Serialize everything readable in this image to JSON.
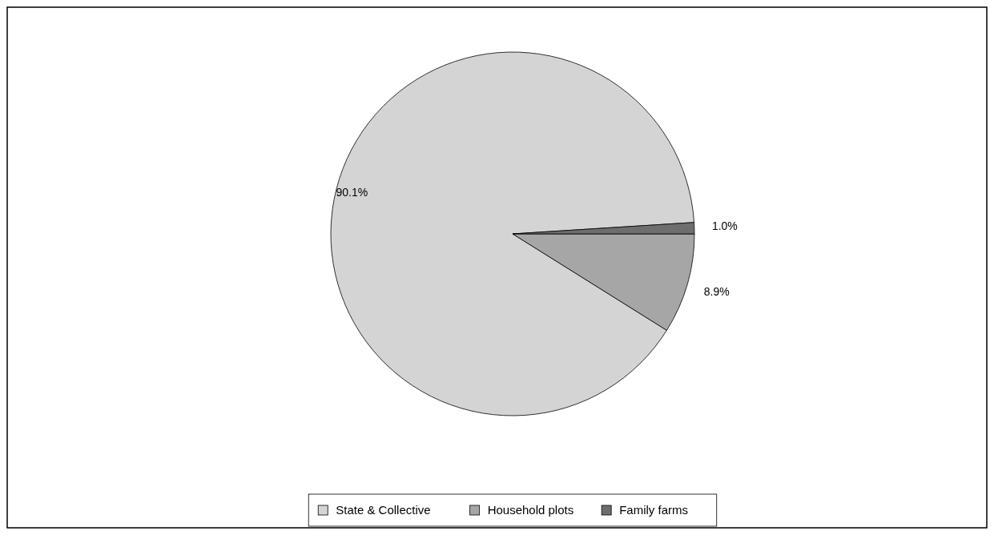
{
  "chart_data": {
    "type": "pie",
    "categories": [
      "State & Collective",
      "Household plots",
      "Family farms"
    ],
    "values": [
      90.1,
      8.9,
      1.0
    ],
    "value_labels": [
      "90.1%",
      "8.9%",
      "1.0%"
    ],
    "colors": [
      "#d4d4d4",
      "#a6a6a6",
      "#6e6e6e"
    ],
    "legend": "bottom"
  }
}
